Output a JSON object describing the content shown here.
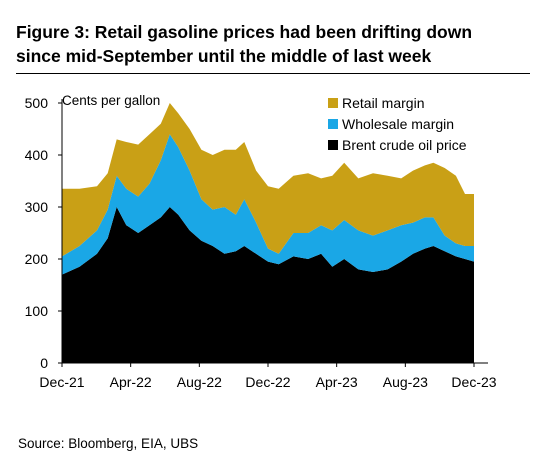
{
  "title_lines": [
    "Figure 3: Retail gasoline prices had been drifting down",
    "since mid-September until the middle of last week"
  ],
  "source": "Source: Bloomberg, EIA, UBS",
  "chart_data": {
    "type": "area",
    "stacked": true,
    "unit_label": "Cents per gallon",
    "ylim": [
      0,
      500
    ],
    "yticks": [
      "0",
      "100",
      "200",
      "300",
      "400",
      "500"
    ],
    "xticks": [
      "Dec-21",
      "Apr-22",
      "Aug-22",
      "Dec-22",
      "Apr-23",
      "Aug-23",
      "Dec-23"
    ],
    "xlim": [
      "2021-12-01",
      "2023-12-01"
    ],
    "legend_position": "top-right",
    "x": [
      "2021-12-01",
      "2022-01-01",
      "2022-02-01",
      "2022-02-20",
      "2022-03-08",
      "2022-03-25",
      "2022-04-15",
      "2022-05-05",
      "2022-05-25",
      "2022-06-10",
      "2022-06-25",
      "2022-07-15",
      "2022-08-05",
      "2022-08-25",
      "2022-09-15",
      "2022-10-05",
      "2022-10-20",
      "2022-11-10",
      "2022-12-01",
      "2022-12-20",
      "2023-01-15",
      "2023-02-10",
      "2023-03-05",
      "2023-03-25",
      "2023-04-15",
      "2023-05-10",
      "2023-06-05",
      "2023-07-01",
      "2023-07-25",
      "2023-08-15",
      "2023-09-05",
      "2023-09-20",
      "2023-10-10",
      "2023-10-30",
      "2023-11-15",
      "2023-12-01"
    ],
    "series": [
      {
        "name": "Brent crude oil price",
        "color": "#000000",
        "values": [
          170,
          185,
          210,
          240,
          300,
          265,
          250,
          265,
          280,
          300,
          285,
          255,
          235,
          225,
          210,
          215,
          225,
          210,
          195,
          190,
          205,
          200,
          210,
          185,
          200,
          180,
          175,
          180,
          195,
          210,
          220,
          225,
          215,
          205,
          200,
          195
        ]
      },
      {
        "name": "Wholesale margin",
        "color": "#1aa7e6",
        "values": [
          35,
          40,
          45,
          55,
          60,
          70,
          70,
          80,
          110,
          140,
          130,
          115,
          80,
          70,
          90,
          70,
          90,
          60,
          25,
          20,
          45,
          50,
          55,
          70,
          75,
          75,
          70,
          75,
          70,
          60,
          60,
          55,
          30,
          25,
          25,
          30
        ]
      },
      {
        "name": "Retail margin",
        "color": "#c9a016",
        "values": [
          130,
          110,
          85,
          70,
          70,
          90,
          100,
          95,
          70,
          60,
          65,
          80,
          95,
          105,
          110,
          125,
          110,
          100,
          120,
          125,
          110,
          115,
          90,
          105,
          110,
          100,
          120,
          105,
          90,
          100,
          100,
          105,
          130,
          130,
          100,
          100
        ]
      }
    ]
  }
}
